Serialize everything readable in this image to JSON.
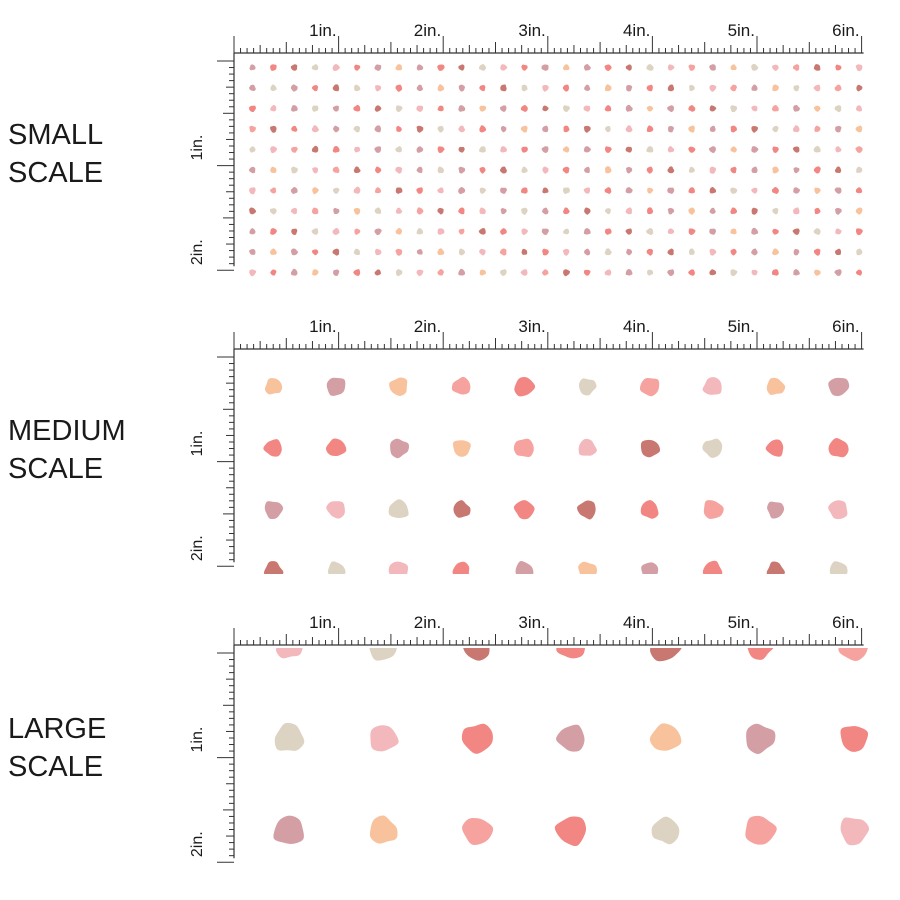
{
  "panels": [
    {
      "id": "small",
      "label_line1": "SMALL",
      "label_line2": "SCALE",
      "spacing_in": 0.2,
      "dot_scale": 0.35
    },
    {
      "id": "medium",
      "label_line1": "MEDIUM",
      "label_line2": "SCALE",
      "spacing_in": 0.6,
      "dot_scale": 1.0
    },
    {
      "id": "large",
      "label_line1": "LARGE",
      "label_line2": "SCALE",
      "spacing_in": 0.9,
      "dot_scale": 1.55
    }
  ],
  "ruler": {
    "horizontal_labels": [
      "1in.",
      "2in.",
      "3in.",
      "4in.",
      "5in.",
      "6in."
    ],
    "vertical_labels": [
      "1in.",
      "2in."
    ]
  },
  "palette": {
    "coral": "#f28683",
    "salmon": "#f6a3a0",
    "light_pink": "#f2b8bb",
    "mauve": "#d49ea5",
    "rust": "#c87870",
    "peach": "#f8c29c",
    "beige": "#ddd3c2"
  },
  "pattern": {
    "small": [
      "mauve",
      "coral",
      "rust",
      "beige",
      "light_pink",
      "coral",
      "mauve",
      "peach",
      "mauve",
      "coral",
      "rust",
      "beige",
      "light_pink",
      "coral",
      "mauve",
      "peach",
      "mauve",
      "coral",
      "rust",
      "beige",
      "light_pink",
      "salmon",
      "mauve",
      "peach",
      "beige",
      "light_pink",
      "salmon",
      "rust",
      "coral",
      "light_pink",
      "mauve",
      "beige"
    ],
    "medium": [
      "peach",
      "mauve",
      "peach",
      "salmon",
      "coral",
      "beige",
      "salmon",
      "light_pink",
      "peach",
      "mauve",
      "coral",
      "coral",
      "mauve",
      "peach",
      "salmon",
      "light_pink",
      "rust",
      "beige",
      "coral",
      "coral",
      "mauve",
      "light_pink",
      "beige",
      "rust",
      "coral",
      "rust",
      "coral",
      "salmon",
      "mauve",
      "light_pink",
      "rust",
      "beige",
      "light_pink",
      "coral",
      "mauve",
      "peach",
      "mauve",
      "coral",
      "rust",
      "beige"
    ],
    "large": [
      "light_pink",
      "beige",
      "rust",
      "coral",
      "rust",
      "coral",
      "salmon",
      "beige",
      "light_pink",
      "coral",
      "mauve",
      "peach",
      "mauve",
      "coral",
      "mauve",
      "peach",
      "salmon",
      "coral",
      "beige",
      "salmon",
      "light_pink",
      "coral",
      "light_pink",
      "beige",
      "mauve",
      "coral",
      "salmon"
    ]
  }
}
